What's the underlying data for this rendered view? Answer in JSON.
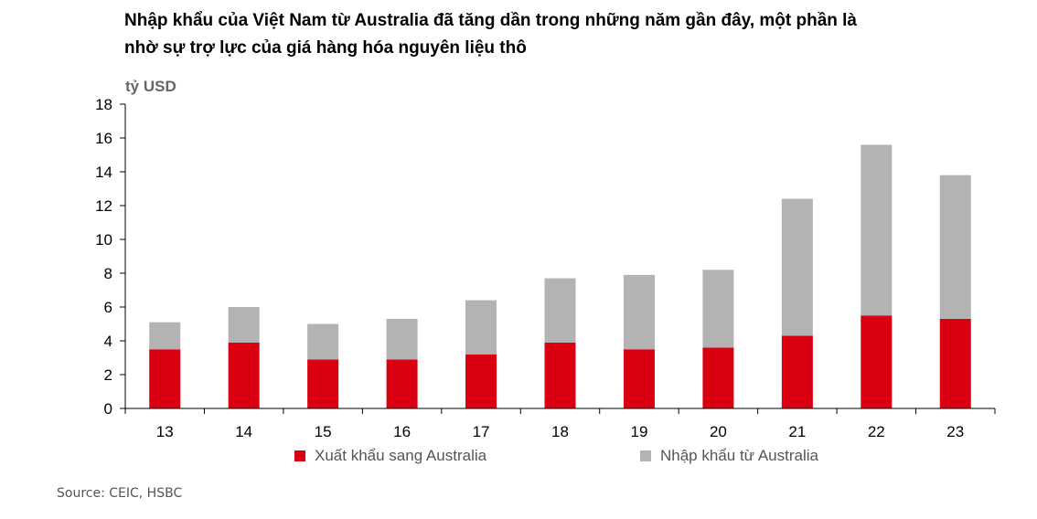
{
  "title_line1": "Nhập khẩu của Việt Nam từ Australia đã tăng dần trong những năm gần đây, một phần là",
  "title_line2": "nhờ sự trợ lực của giá hàng hóa nguyên liệu thô",
  "unit_label": "tỷ USD",
  "source": "Source: CEIC, HSBC",
  "colors": {
    "export": "#db0011",
    "import": "#b3b3b3",
    "axis": "#000000",
    "tick_text": "#000000"
  },
  "chart_data": {
    "type": "bar",
    "stacked": true,
    "categories": [
      "13",
      "14",
      "15",
      "16",
      "17",
      "18",
      "19",
      "20",
      "21",
      "22",
      "23"
    ],
    "series": [
      {
        "name": "Xuất khẩu sang Australia",
        "values": [
          3.5,
          3.9,
          2.9,
          2.9,
          3.2,
          3.9,
          3.5,
          3.6,
          4.3,
          5.5,
          5.3
        ]
      },
      {
        "name": "Nhập khẩu từ Australia",
        "values": [
          1.6,
          2.1,
          2.1,
          2.4,
          3.2,
          3.8,
          4.4,
          4.6,
          8.1,
          10.1,
          8.5
        ]
      }
    ],
    "ylim": [
      0,
      18
    ],
    "yticks": [
      0,
      2,
      4,
      6,
      8,
      10,
      12,
      14,
      16,
      18
    ],
    "ylabel": "tỷ USD",
    "xlabel": "",
    "grid": false,
    "legend_position": "bottom"
  }
}
